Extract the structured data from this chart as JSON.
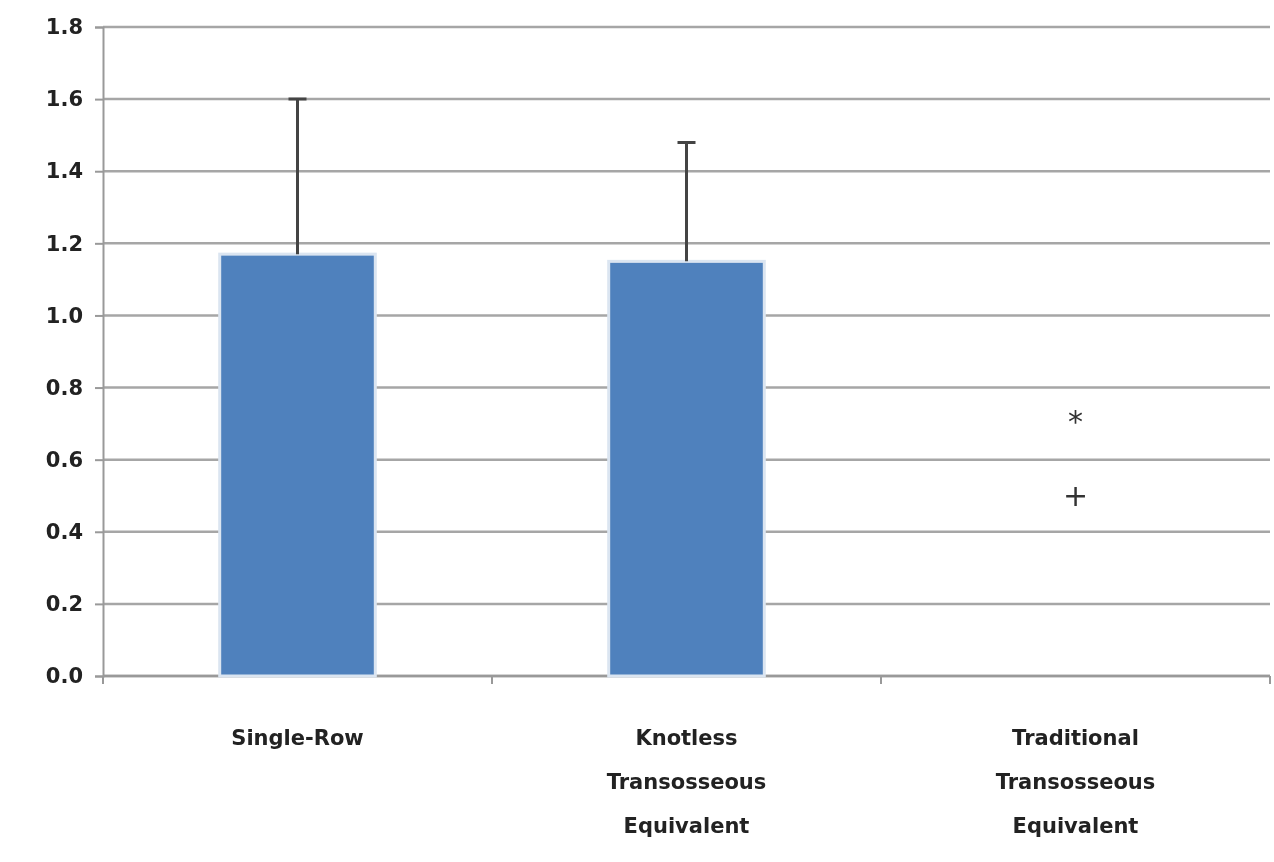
{
  "chart_data": {
    "type": "bar",
    "categories": [
      "Single-Row",
      "Knotless Transosseous Equivalent",
      "Traditional Transosseous Equivalent"
    ],
    "values": [
      1.17,
      1.15,
      null
    ],
    "errors": [
      [
        1.17,
        1.6
      ],
      [
        1.15,
        1.48
      ],
      null
    ],
    "color": "#4f81bd",
    "ylim": [
      0,
      1.8
    ],
    "yticks": [
      {
        "value": 0,
        "label": "0.0"
      },
      0.2,
      0.4,
      0.6,
      0.8,
      {
        "value": 1,
        "label": "1.0"
      },
      1.2,
      1.4,
      1.6,
      1.8
    ],
    "grid": "y",
    "annotations": [
      "*",
      "+"
    ]
  }
}
